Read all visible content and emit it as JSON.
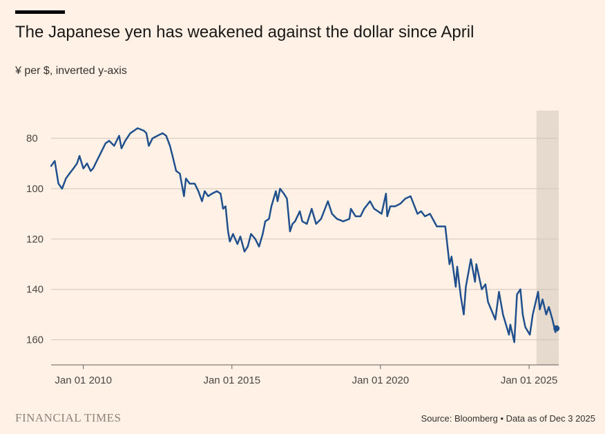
{
  "header": {
    "title": "The Japanese yen has weakened against the dollar since April",
    "subtitle": "¥ per $, inverted y-axis"
  },
  "footer": {
    "brand": "FINANCIAL TIMES",
    "source": "Source: Bloomberg • Data as of Dec 3 2025"
  },
  "colors": {
    "background": "#FFF1E5",
    "line": "#1F4F8C",
    "highlight": "#E6D9CE",
    "grid": "#CEC6B9"
  },
  "chart_data": {
    "type": "line",
    "title": "The Japanese yen has weakened against the dollar since April",
    "subtitle": "¥ per $, inverted y-axis",
    "ylabel": "¥ per $",
    "y_inverted": true,
    "ylim": [
      69,
      170
    ],
    "xlim": [
      "2008-12-01",
      "2025-12-31"
    ],
    "grid": true,
    "y_ticks": [
      80,
      100,
      120,
      140,
      160
    ],
    "x_ticks": [
      {
        "date": "2010-01-01",
        "label": "Jan 01 2010"
      },
      {
        "date": "2015-01-01",
        "label": "Jan 01 2015"
      },
      {
        "date": "2020-01-01",
        "label": "Jan 01 2020"
      },
      {
        "date": "2025-01-01",
        "label": "Jan 01 2025"
      }
    ],
    "highlight_range": [
      "2025-04-01",
      "2025-12-03"
    ],
    "end_marker": {
      "date": "2025-12-03",
      "value": 155.5
    },
    "series": [
      {
        "points": [
          [
            "2008-12-01",
            91
          ],
          [
            "2009-01-15",
            89
          ],
          [
            "2009-03-01",
            98
          ],
          [
            "2009-04-15",
            100
          ],
          [
            "2009-06-01",
            96
          ],
          [
            "2009-07-15",
            94
          ],
          [
            "2009-09-01",
            92
          ],
          [
            "2009-10-15",
            90
          ],
          [
            "2009-11-15",
            87
          ],
          [
            "2010-01-01",
            92
          ],
          [
            "2010-02-15",
            90
          ],
          [
            "2010-04-01",
            93
          ],
          [
            "2010-05-01",
            92
          ],
          [
            "2010-06-15",
            89
          ],
          [
            "2010-08-01",
            86
          ],
          [
            "2010-10-01",
            82
          ],
          [
            "2010-11-15",
            81
          ],
          [
            "2011-01-15",
            83
          ],
          [
            "2011-03-17",
            79
          ],
          [
            "2011-04-15",
            84
          ],
          [
            "2011-06-01",
            81
          ],
          [
            "2011-08-01",
            78
          ],
          [
            "2011-10-31",
            76
          ],
          [
            "2012-01-15",
            77
          ],
          [
            "2012-02-15",
            78
          ],
          [
            "2012-03-15",
            83
          ],
          [
            "2012-05-01",
            80
          ],
          [
            "2012-07-01",
            79
          ],
          [
            "2012-09-01",
            78
          ],
          [
            "2012-10-15",
            79
          ],
          [
            "2012-12-01",
            83
          ],
          [
            "2013-01-01",
            87
          ],
          [
            "2013-02-15",
            93
          ],
          [
            "2013-04-01",
            94
          ],
          [
            "2013-05-22",
            103
          ],
          [
            "2013-06-15",
            96
          ],
          [
            "2013-08-01",
            98
          ],
          [
            "2013-10-01",
            98
          ],
          [
            "2013-11-15",
            101
          ],
          [
            "2013-12-30",
            105
          ],
          [
            "2014-02-01",
            101
          ],
          [
            "2014-03-15",
            103
          ],
          [
            "2014-05-01",
            102
          ],
          [
            "2014-07-01",
            101
          ],
          [
            "2014-08-15",
            102
          ],
          [
            "2014-09-15",
            108
          ],
          [
            "2014-10-15",
            107
          ],
          [
            "2014-11-15",
            117
          ],
          [
            "2014-12-07",
            121
          ],
          [
            "2015-01-15",
            118
          ],
          [
            "2015-03-10",
            122
          ],
          [
            "2015-04-15",
            119
          ],
          [
            "2015-06-05",
            125
          ],
          [
            "2015-07-15",
            123
          ],
          [
            "2015-08-24",
            118
          ],
          [
            "2015-10-15",
            120
          ],
          [
            "2015-12-01",
            123
          ],
          [
            "2016-01-15",
            118
          ],
          [
            "2016-02-15",
            113
          ],
          [
            "2016-04-01",
            112
          ],
          [
            "2016-05-01",
            107
          ],
          [
            "2016-06-24",
            101
          ],
          [
            "2016-07-15",
            105
          ],
          [
            "2016-08-15",
            100
          ],
          [
            "2016-10-01",
            102
          ],
          [
            "2016-11-08",
            104
          ],
          [
            "2016-12-15",
            117
          ],
          [
            "2017-01-15",
            114
          ],
          [
            "2017-02-15",
            113
          ],
          [
            "2017-04-15",
            109
          ],
          [
            "2017-05-15",
            113
          ],
          [
            "2017-07-10",
            114
          ],
          [
            "2017-09-08",
            108
          ],
          [
            "2017-11-01",
            114
          ],
          [
            "2018-01-01",
            112
          ],
          [
            "2018-03-26",
            105
          ],
          [
            "2018-05-15",
            110
          ],
          [
            "2018-07-15",
            112
          ],
          [
            "2018-10-01",
            113
          ],
          [
            "2018-12-15",
            112
          ],
          [
            "2019-01-03",
            108
          ],
          [
            "2019-03-01",
            111
          ],
          [
            "2019-05-01",
            111
          ],
          [
            "2019-06-15",
            108
          ],
          [
            "2019-08-26",
            105
          ],
          [
            "2019-10-15",
            108
          ],
          [
            "2019-12-01",
            109
          ],
          [
            "2020-01-15",
            110
          ],
          [
            "2020-03-09",
            102
          ],
          [
            "2020-03-24",
            111
          ],
          [
            "2020-05-01",
            107
          ],
          [
            "2020-07-01",
            107
          ],
          [
            "2020-09-01",
            106
          ],
          [
            "2020-11-01",
            104
          ],
          [
            "2021-01-05",
            103
          ],
          [
            "2021-03-31",
            110
          ],
          [
            "2021-05-15",
            109
          ],
          [
            "2021-07-01",
            111
          ],
          [
            "2021-09-01",
            110
          ],
          [
            "2021-11-24",
            115
          ],
          [
            "2022-01-04",
            115
          ],
          [
            "2022-03-07",
            115
          ],
          [
            "2022-04-28",
            130
          ],
          [
            "2022-05-24",
            127
          ],
          [
            "2022-07-14",
            139
          ],
          [
            "2022-08-01",
            131
          ],
          [
            "2022-09-15",
            143
          ],
          [
            "2022-10-21",
            150
          ],
          [
            "2022-11-15",
            139
          ],
          [
            "2023-01-16",
            128
          ],
          [
            "2023-03-08",
            137
          ],
          [
            "2023-03-24",
            130
          ],
          [
            "2023-05-30",
            140
          ],
          [
            "2023-07-14",
            138
          ],
          [
            "2023-08-15",
            145
          ],
          [
            "2023-11-13",
            152
          ],
          [
            "2023-12-28",
            141
          ],
          [
            "2024-02-15",
            150
          ],
          [
            "2024-04-29",
            158
          ],
          [
            "2024-05-15",
            154
          ],
          [
            "2024-07-03",
            161
          ],
          [
            "2024-08-05",
            142
          ],
          [
            "2024-09-16",
            140
          ],
          [
            "2024-10-15",
            150
          ],
          [
            "2024-11-15",
            155
          ],
          [
            "2025-01-10",
            158
          ],
          [
            "2025-02-15",
            150
          ],
          [
            "2025-04-21",
            141
          ],
          [
            "2025-05-12",
            148
          ],
          [
            "2025-06-15",
            144
          ],
          [
            "2025-07-30",
            150
          ],
          [
            "2025-09-01",
            147
          ],
          [
            "2025-10-15",
            152
          ],
          [
            "2025-11-20",
            157
          ],
          [
            "2025-12-03",
            155.5
          ]
        ]
      }
    ]
  }
}
